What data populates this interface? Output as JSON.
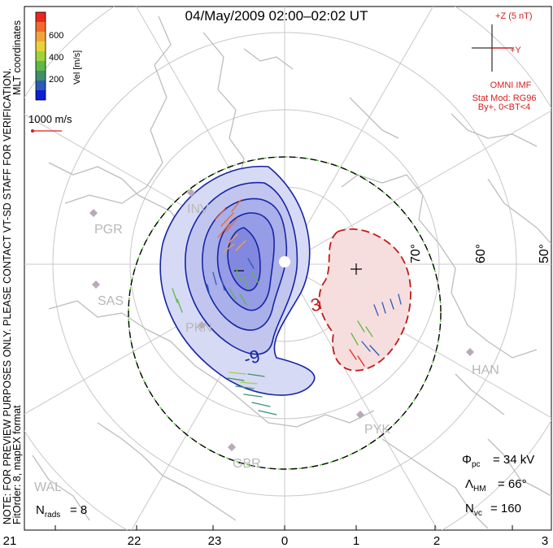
{
  "title": "04/May/2009 02:00–02:02 UT",
  "vertical_note": "NOTE: FOR PREVIEW PURPOSES ONLY. PLEASE CONTACT VT-SD STAFF FOR VERIFICATION.",
  "coord_system": "MLT coordinates",
  "fit_order": "FitOrder: 8, mapEX format",
  "velocity_scale": {
    "unit_label": "Vel [m/s]",
    "ticks": [
      "600",
      "400",
      "200"
    ],
    "colors": [
      "#0a1fd6",
      "#2a5bb8",
      "#3f8f6e",
      "#5fb848",
      "#9ed33a",
      "#e8d23a",
      "#f4a33a",
      "#f26a2a",
      "#e8281e"
    ]
  },
  "reference_vector": {
    "label": "1000 m/s",
    "color": "#d61e1e"
  },
  "imf": {
    "scale_label": "+Z (5 nT)",
    "y_label": "+Y",
    "source": "OMNI IMF",
    "stat_model": "Stat Mod: RG96",
    "condition": "By+, 0<BT<4",
    "color": "#d61e1e"
  },
  "latitude_labels": [
    "70°",
    "60°",
    "50°"
  ],
  "contour_labels": {
    "negative": "-9",
    "positive": "3"
  },
  "stations": [
    "INV",
    "PGR",
    "SAS",
    "PKN",
    "HAN",
    "PYK",
    "GBR",
    "WAL"
  ],
  "stats": {
    "phi_pc_symbol": "Φ",
    "phi_pc_sub": "pc",
    "phi_pc_value": "= 34 kV",
    "lambda_symbol": "Λ",
    "lambda_sub": "HM",
    "lambda_value": "= 66°",
    "nvc_symbol": "N",
    "nvc_sub": "vc",
    "nvc_value": "= 160",
    "nrads_symbol": "N",
    "nrads_sub": "rads",
    "nrads_value": "= 8"
  },
  "mlt_axis": [
    "21",
    "22",
    "23",
    "0",
    "1",
    "2",
    "3"
  ],
  "convection": {
    "dusk_cell_fill": "#c9cdf0",
    "dusk_cell_core": "#8f95e6",
    "dusk_contour_color": "#1624a6",
    "dawn_cell_fill": "#f6dede",
    "dawn_contour_color": "#c21a1a",
    "boundary_color": "#5cc43a"
  }
}
